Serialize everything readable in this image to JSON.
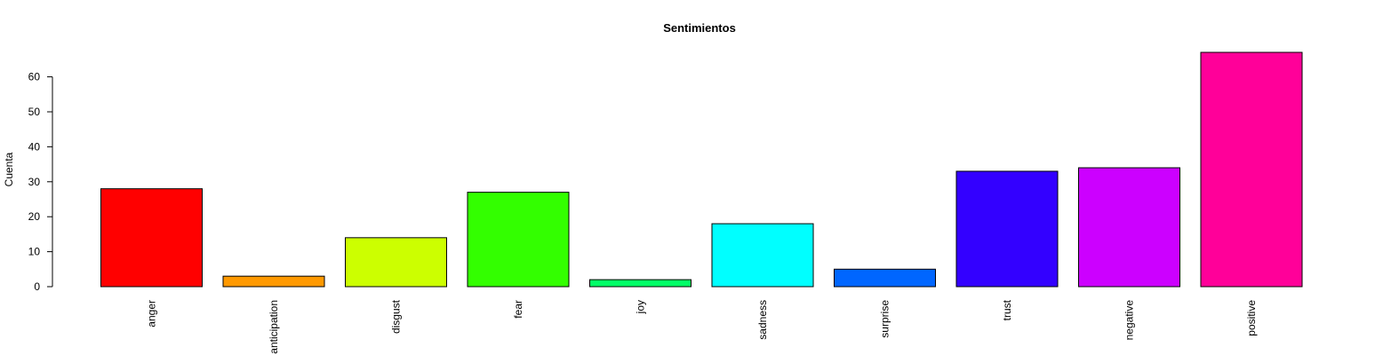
{
  "chart_data": {
    "type": "bar",
    "title": "Sentimientos",
    "y_label": "Cuenta",
    "categories": [
      "anger",
      "anticipation",
      "disgust",
      "fear",
      "joy",
      "sadness",
      "surprise",
      "trust",
      "negative",
      "positive"
    ],
    "values": [
      28,
      3,
      14,
      27,
      2,
      18,
      5,
      33,
      34,
      67
    ],
    "colors": [
      "#ff0000",
      "#ff9900",
      "#ccff00",
      "#33ff00",
      "#00ff66",
      "#00ffff",
      "#0066ff",
      "#3300ff",
      "#cc00ff",
      "#ff0099"
    ],
    "ylim": [
      0,
      67
    ],
    "yticks": [
      0,
      10,
      20,
      30,
      40,
      50,
      60
    ]
  }
}
